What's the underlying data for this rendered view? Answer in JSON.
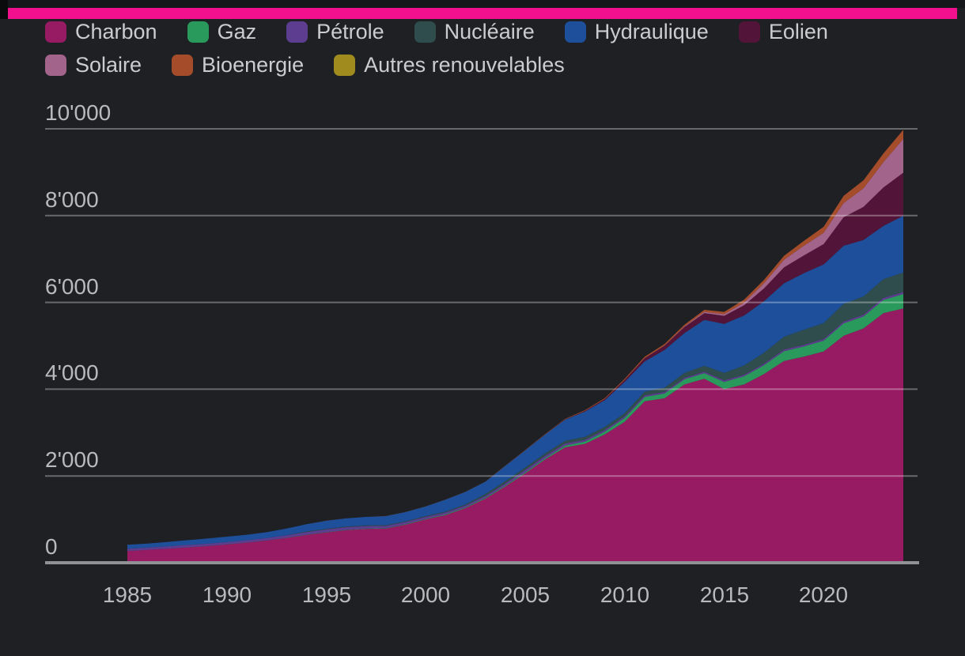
{
  "accent_bar": {
    "color": "#f2108f"
  },
  "chart_data": {
    "type": "area",
    "stacked": true,
    "title": "",
    "xlabel": "",
    "ylabel": "",
    "ylim": [
      0,
      10000
    ],
    "grid": true,
    "legend_position": "top",
    "x": [
      1985,
      1986,
      1987,
      1988,
      1989,
      1990,
      1991,
      1992,
      1993,
      1994,
      1995,
      1996,
      1997,
      1998,
      1999,
      2000,
      2001,
      2002,
      2003,
      2004,
      2005,
      2006,
      2007,
      2008,
      2009,
      2010,
      2011,
      2012,
      2013,
      2014,
      2015,
      2016,
      2017,
      2018,
      2019,
      2020,
      2021,
      2022,
      2023,
      2024
    ],
    "x_ticks": [
      1985,
      1990,
      1995,
      2000,
      2005,
      2010,
      2015,
      2020
    ],
    "x_tick_labels": [
      "1985",
      "1990",
      "1995",
      "2000",
      "2005",
      "2010",
      "2015",
      "2020"
    ],
    "y_ticks": [
      0,
      2000,
      4000,
      6000,
      8000,
      10000
    ],
    "y_tick_labels": [
      "0",
      "2'000",
      "4'000",
      "6'000",
      "8'000",
      "10'000"
    ],
    "series": [
      {
        "name": "Charbon",
        "color": "#971b63",
        "values": [
          270,
          295,
          322,
          352,
          382,
          420,
          462,
          512,
          572,
          640,
          700,
          750,
          778,
          788,
          880,
          1000,
          1100,
          1260,
          1480,
          1760,
          2060,
          2380,
          2660,
          2740,
          2960,
          3250,
          3720,
          3790,
          4110,
          4240,
          4000,
          4110,
          4350,
          4650,
          4750,
          4870,
          5230,
          5400,
          5750,
          5860
        ]
      },
      {
        "name": "Gaz",
        "color": "#2a9a5c",
        "values": [
          1,
          1,
          1,
          2,
          2,
          3,
          3,
          3,
          4,
          5,
          6,
          7,
          8,
          9,
          10,
          11,
          14,
          17,
          19,
          21,
          24,
          30,
          41,
          50,
          62,
          85,
          100,
          110,
          117,
          130,
          167,
          188,
          203,
          224,
          233,
          248,
          287,
          276,
          307,
          333
        ]
      },
      {
        "name": "Pétrole",
        "color": "#5d3d90",
        "values": [
          50,
          52,
          54,
          56,
          55,
          52,
          54,
          56,
          58,
          60,
          62,
          62,
          60,
          56,
          52,
          48,
          46,
          44,
          42,
          48,
          58,
          54,
          48,
          42,
          40,
          38,
          36,
          36,
          35,
          35,
          35,
          36,
          36,
          38,
          38,
          38,
          40,
          42,
          45,
          50
        ]
      },
      {
        "name": "Nucléaire",
        "color": "#2f4d4d",
        "values": [
          0,
          0,
          0,
          0,
          0,
          0,
          0,
          0,
          2,
          14,
          13,
          14,
          14,
          14,
          15,
          17,
          18,
          25,
          43,
          50,
          53,
          55,
          62,
          68,
          70,
          74,
          87,
          97,
          112,
          133,
          171,
          213,
          248,
          295,
          349,
          366,
          408,
          418,
          434,
          445
        ]
      },
      {
        "name": "Hydraulique",
        "color": "#1d4f9a",
        "values": [
          92,
          95,
          100,
          109,
          118,
          127,
          125,
          132,
          152,
          168,
          187,
          188,
          196,
          208,
          213,
          222,
          277,
          288,
          284,
          354,
          397,
          436,
          485,
          585,
          616,
          722,
          699,
          872,
          920,
          1060,
          1131,
          1153,
          1190,
          1232,
          1304,
          1355,
          1340,
          1303,
          1226,
          1309
        ]
      },
      {
        "name": "Eolien",
        "color": "#521539",
        "values": [
          0,
          0,
          0,
          0,
          0,
          0,
          0,
          0,
          0,
          0,
          0,
          0,
          0,
          0,
          1,
          1,
          1,
          1,
          1,
          1,
          2,
          4,
          9,
          15,
          27,
          45,
          70,
          96,
          138,
          156,
          186,
          237,
          295,
          366,
          406,
          467,
          656,
          763,
          886,
          992
        ]
      },
      {
        "name": "Solaire",
        "color": "#a2648a",
        "values": [
          0,
          0,
          0,
          0,
          0,
          0,
          0,
          0,
          0,
          0,
          0,
          0,
          0,
          0,
          0,
          0,
          0,
          0,
          0,
          0,
          0,
          0,
          0,
          0,
          0,
          1,
          3,
          6,
          15,
          29,
          39,
          62,
          118,
          177,
          224,
          261,
          327,
          428,
          584,
          780
        ]
      },
      {
        "name": "Bioenergie",
        "color": "#a54d2b",
        "values": [
          0,
          0,
          0,
          0,
          0,
          0,
          0,
          0,
          0,
          0,
          1,
          1,
          1,
          1,
          2,
          2,
          2,
          3,
          3,
          4,
          5,
          8,
          11,
          15,
          20,
          25,
          31,
          34,
          38,
          46,
          53,
          65,
          79,
          91,
          111,
          138,
          166,
          184,
          198,
          208
        ]
      },
      {
        "name": "Autres renouvelables",
        "color": "#a08b1f",
        "values": [
          0,
          0,
          0,
          0,
          0,
          0,
          0,
          0,
          0,
          0,
          0,
          0,
          0,
          0,
          0,
          0,
          0,
          0,
          0,
          0,
          0,
          0,
          0,
          0,
          0,
          0,
          0,
          0,
          0,
          0,
          0,
          0,
          0,
          0,
          0,
          0,
          0,
          0,
          0,
          0
        ]
      }
    ],
    "style": {
      "gridline_color": "rgba(255,255,255,0.33)",
      "axis_line_color": "#909194",
      "tick_label_color": "#b9babc",
      "legend_label_color": "#cbccce"
    }
  }
}
